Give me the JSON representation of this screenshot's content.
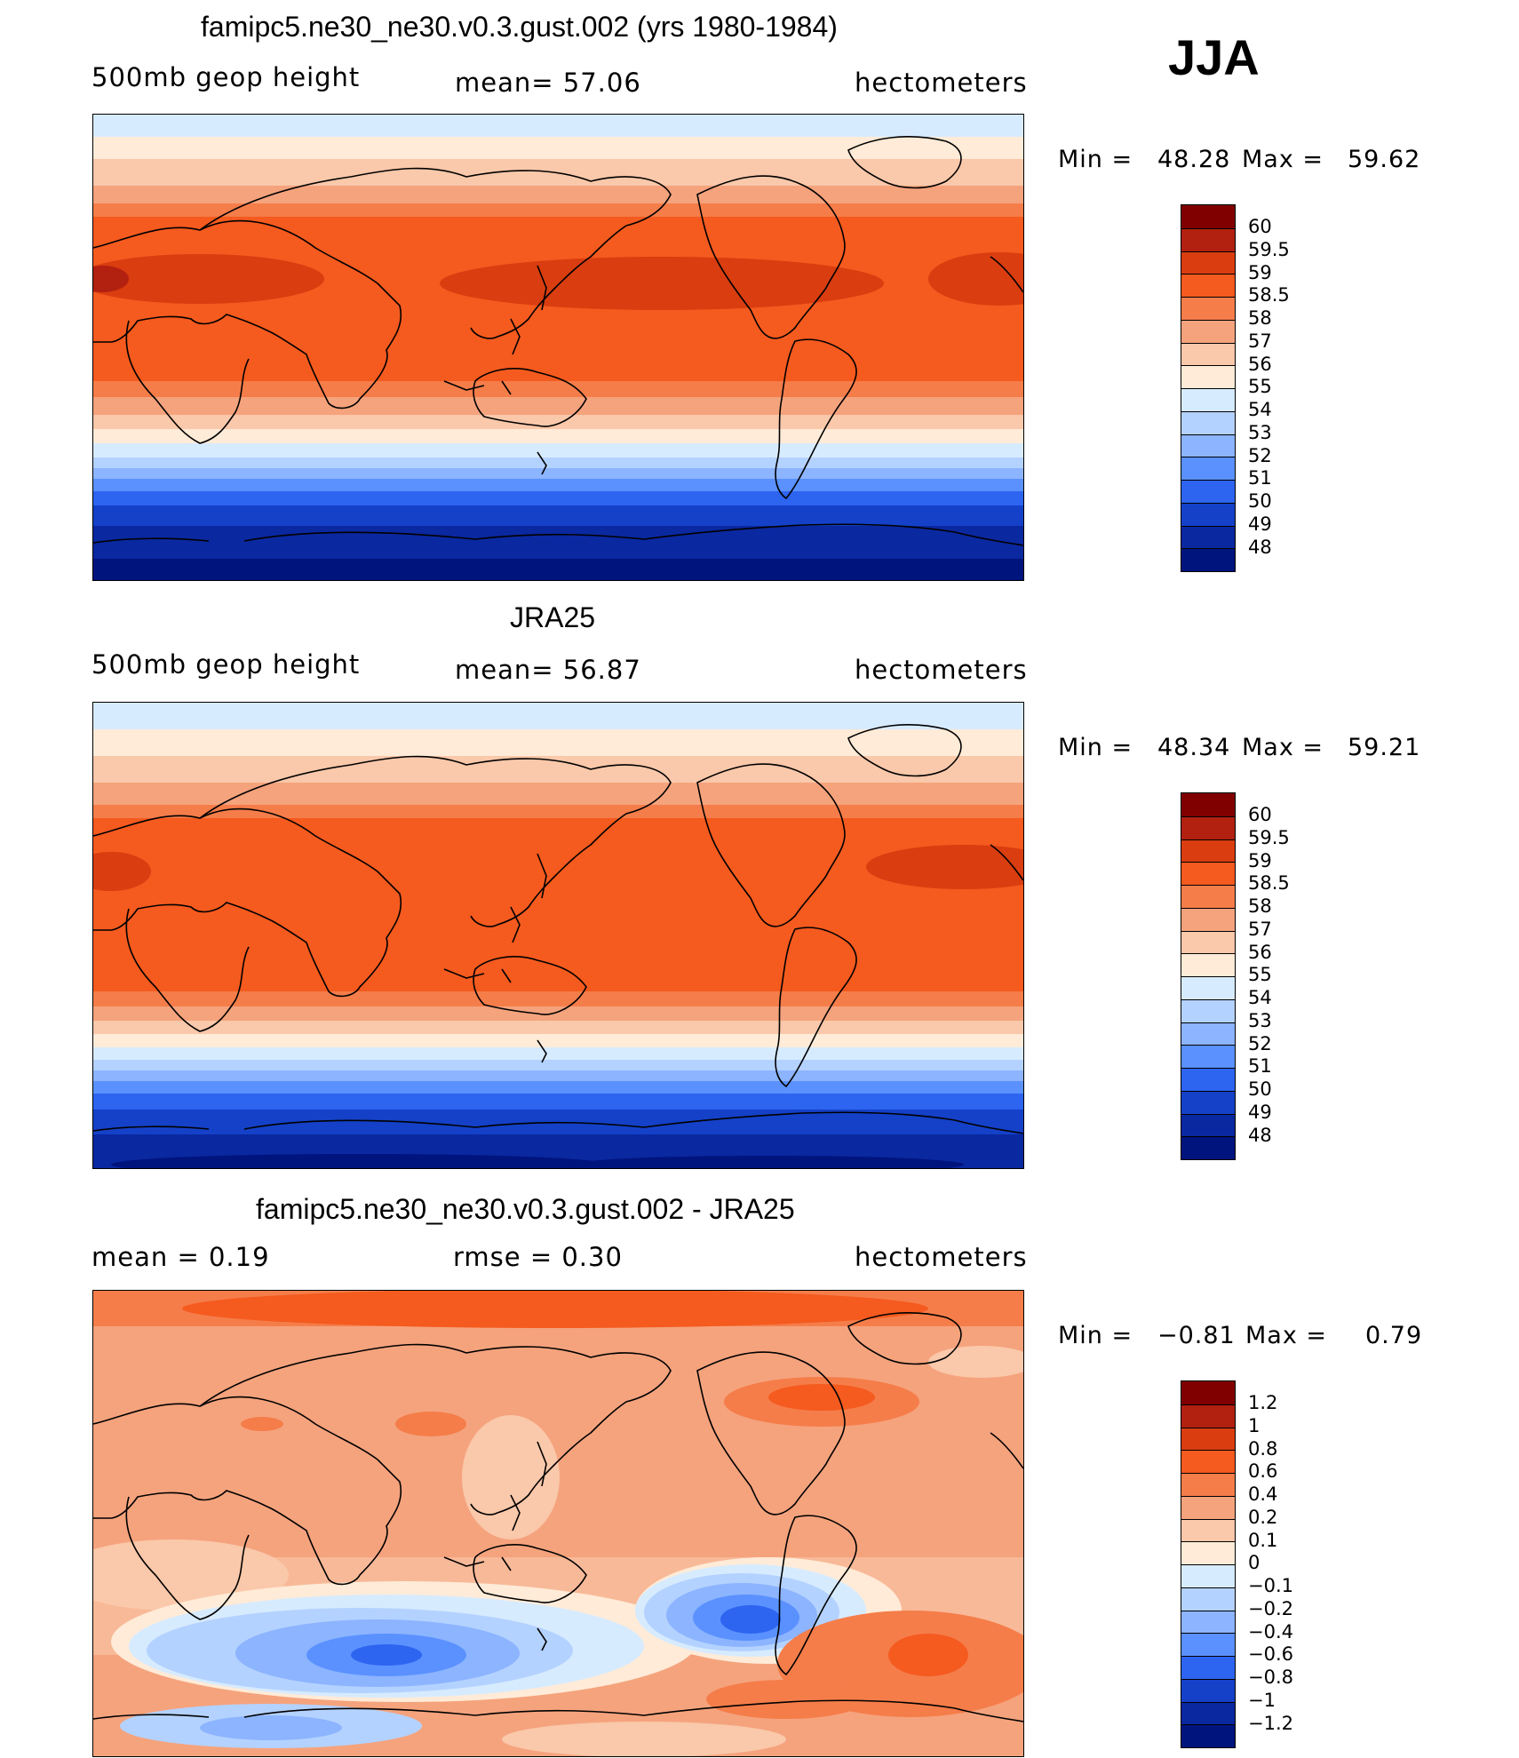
{
  "season": "JJA",
  "panels": [
    {
      "id": "model",
      "title": "famipc5.ne30_ne30.v0.3.gust.002 (yrs 1980-1984)",
      "left_label": "500mb  geop  height",
      "center_label": "mean=   57.06",
      "units": "hectometers",
      "min_label": "Min  =",
      "min_value": "48.28",
      "max_label": "Max  =",
      "max_value": "59.62",
      "legend_levels": [
        "60",
        "59.5",
        "59",
        "58.5",
        "58",
        "57",
        "56",
        "55",
        "54",
        "53",
        "52",
        "51",
        "50",
        "49",
        "48"
      ]
    },
    {
      "id": "obs",
      "title": "JRA25",
      "left_label": "500mb  geop  height",
      "center_label": "mean=   56.87",
      "units": "hectometers",
      "min_label": "Min  =",
      "min_value": "48.34",
      "max_label": "Max  =",
      "max_value": "59.21",
      "legend_levels": [
        "60",
        "59.5",
        "59",
        "58.5",
        "58",
        "57",
        "56",
        "55",
        "54",
        "53",
        "52",
        "51",
        "50",
        "49",
        "48"
      ]
    },
    {
      "id": "diff",
      "title": "famipc5.ne30_ne30.v0.3.gust.002 - JRA25",
      "left_label": "mean  =      0.19",
      "center_label": "rmse  =      0.30",
      "units": "hectometers",
      "min_label": "Min  =",
      "min_value": "−0.81",
      "max_label": "Max  =",
      "max_value": "0.79",
      "legend_levels": [
        "1.2",
        "1",
        "0.8",
        "0.6",
        "0.4",
        "0.2",
        "0.1",
        "0",
        "−0.1",
        "−0.2",
        "−0.4",
        "−0.6",
        "−0.8",
        "−1",
        "−1.2"
      ]
    }
  ],
  "colors": {
    "colorbar": [
      "#800000",
      "#b22010",
      "#d93d10",
      "#f55a1e",
      "#f57d4a",
      "#f5a37d",
      "#fac8aa",
      "#ffebd7",
      "#d7ebff",
      "#b4d2ff",
      "#8cb4ff",
      "#5a91ff",
      "#2d64f0",
      "#1441c8",
      "#0a28a0",
      "#00147d"
    ]
  }
}
